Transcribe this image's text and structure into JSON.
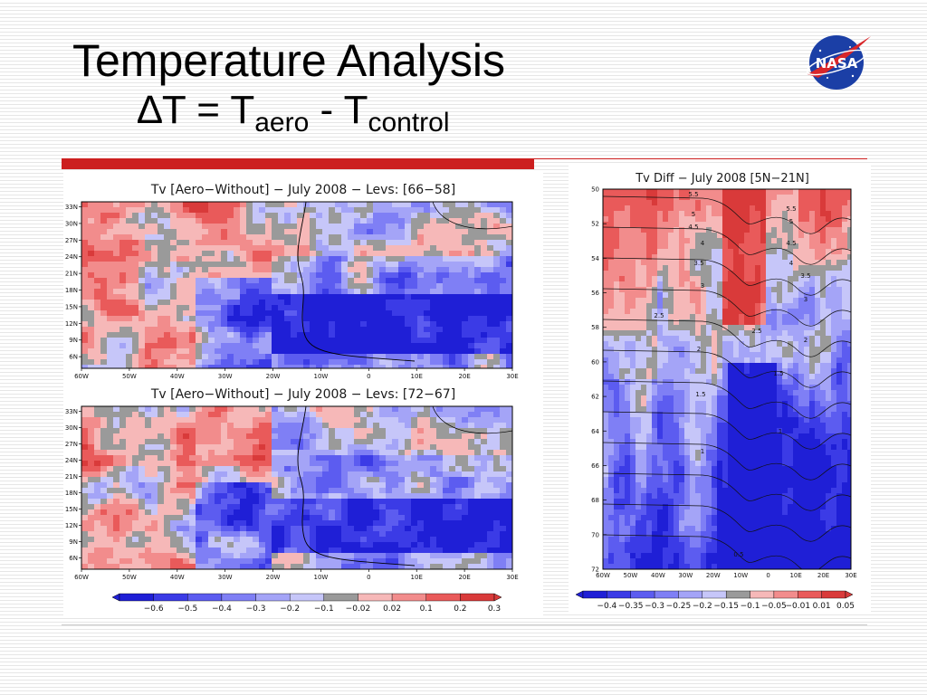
{
  "slide": {
    "title_line1": "Temperature Analysis",
    "title_delta": "∆T = T",
    "title_sub1": "aero",
    "title_mid": " - T",
    "title_sub2": "control"
  },
  "colors": {
    "accent_rule": "#cc1f1f",
    "scale": [
      "#1f1fd6",
      "#3b3be6",
      "#5c5cf0",
      "#7f7ff5",
      "#a4a4f7",
      "#c6c6f9",
      "#9a9a9a",
      "#f6b8b8",
      "#f28c8c",
      "#e95a5a",
      "#d93a3a"
    ]
  },
  "chart_data": [
    {
      "type": "heatmap",
      "title": "Tv [Aero−Without] − July 2008 − Levs: [66−58]",
      "x_ticks": [
        "60W",
        "50W",
        "40W",
        "30W",
        "20W",
        "10W",
        "0",
        "10E",
        "20E",
        "30E"
      ],
      "y_ticks": [
        "33N",
        "30N",
        "27N",
        "24N",
        "21N",
        "18N",
        "15N",
        "12N",
        "9N",
        "6N"
      ]
    },
    {
      "type": "heatmap",
      "title": "Tv [Aero−Without] − July 2008 − Levs: [72−67]",
      "x_ticks": [
        "60W",
        "50W",
        "40W",
        "30W",
        "20W",
        "10W",
        "0",
        "10E",
        "20E",
        "30E"
      ],
      "y_ticks": [
        "33N",
        "30N",
        "27N",
        "24N",
        "21N",
        "18N",
        "15N",
        "12N",
        "9N",
        "6N"
      ],
      "colorbar": [
        "−0.6",
        "−0.5",
        "−0.4",
        "−0.3",
        "−0.2",
        "−0.1",
        "−0.02",
        "0.02",
        "0.1",
        "0.2",
        "0.3"
      ]
    },
    {
      "type": "heatmap",
      "title": "Tv Diff − July 2008 [5N−21N]",
      "x_ticks": [
        "60W",
        "50W",
        "40W",
        "30W",
        "20W",
        "10W",
        "0",
        "10E",
        "20E",
        "30E"
      ],
      "y_ticks": [
        "50",
        "52",
        "54",
        "56",
        "58",
        "60",
        "62",
        "64",
        "66",
        "68",
        "70",
        "72"
      ],
      "contour_labels": [
        "5.5",
        "5",
        "4.5",
        "4",
        "3.5",
        "3",
        "2.5",
        "2",
        "1.5",
        "1",
        "0.5",
        "5.5",
        "5",
        "4.5",
        "4",
        "3.5",
        "3",
        "2.5",
        "2",
        "1.5",
        "1"
      ],
      "colorbar": [
        "−0.4",
        "−0.35",
        "−0.3",
        "−0.25",
        "−0.2",
        "−0.15",
        "−0.1",
        "−0.05",
        "−0.01",
        "0.01",
        "0.05"
      ]
    }
  ]
}
